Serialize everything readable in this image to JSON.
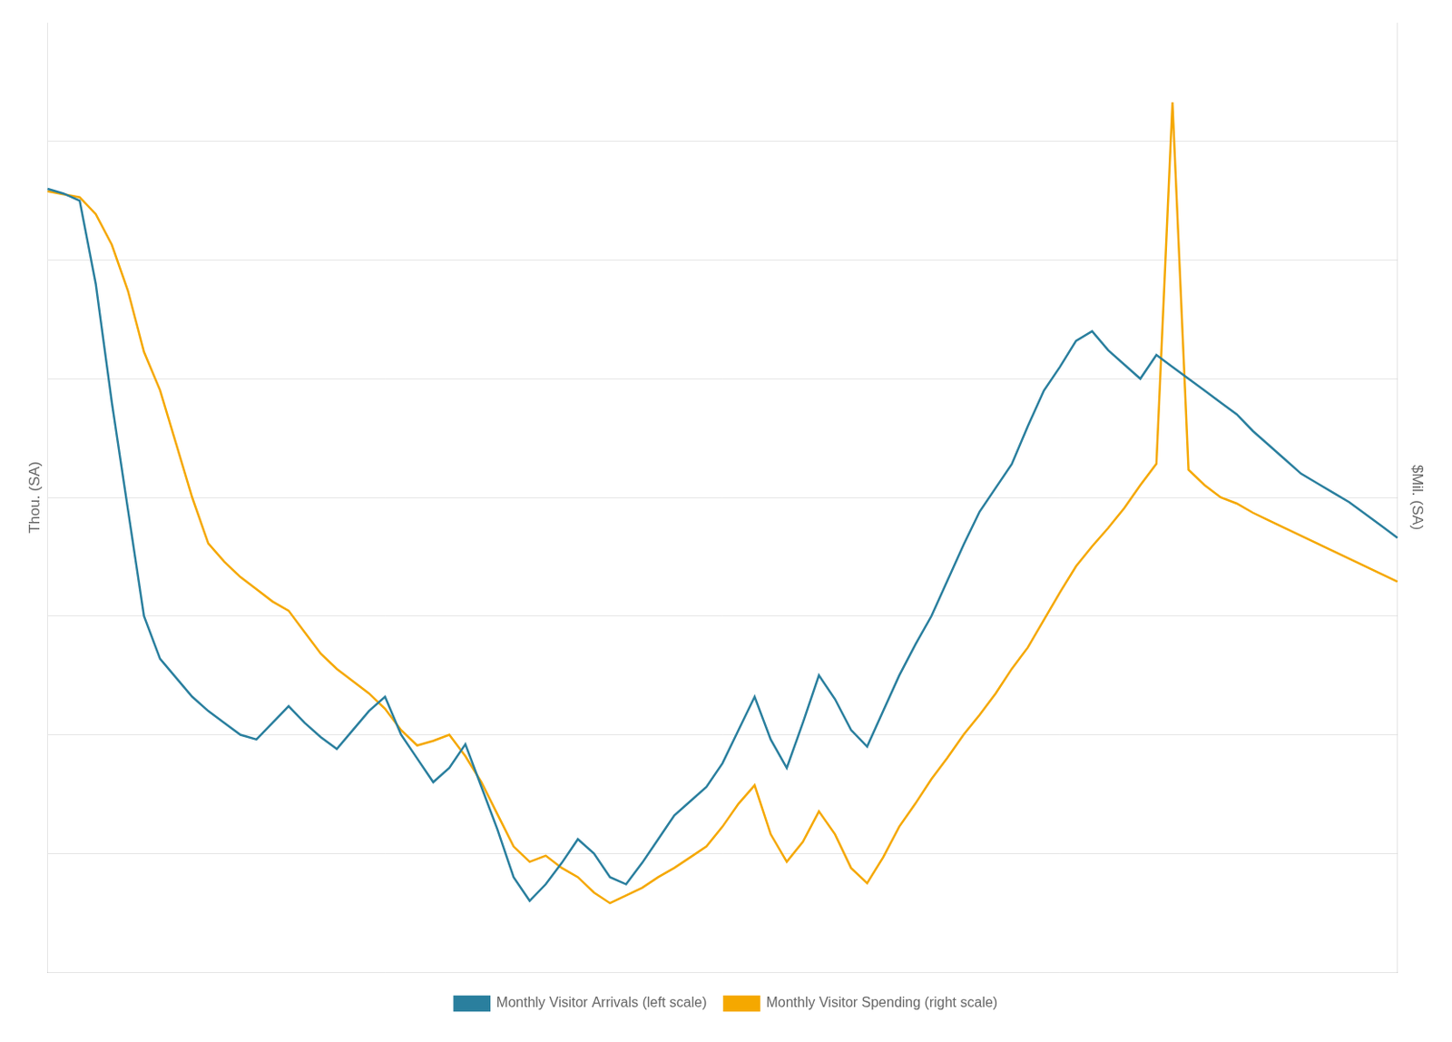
{
  "chart_data": {
    "type": "line",
    "ylabel": "Thou. (SA)",
    "y2label": "$Mil. (SA)",
    "categories": [
      null,
      null,
      null,
      null,
      null,
      null,
      null,
      null,
      null,
      null,
      null,
      null,
      null,
      null,
      null,
      null,
      null,
      null,
      null,
      null,
      null,
      null,
      null,
      null,
      null,
      null,
      null,
      null,
      null,
      null,
      null,
      null,
      null,
      null,
      null,
      null,
      null,
      null,
      null,
      null,
      null,
      null,
      null,
      null,
      null,
      null,
      null,
      null,
      null,
      null,
      null,
      null,
      null,
      null,
      null,
      null,
      null,
      null,
      null,
      null,
      null,
      null,
      null,
      null,
      null,
      null,
      null,
      null,
      null,
      null,
      null,
      null,
      null,
      null,
      null,
      null,
      null,
      null,
      null,
      null,
      null,
      null,
      null,
      null,
      null
    ],
    "series": [
      {
        "name": "Monthly Visitor Arrivals (left scale)",
        "color": "#2a7f9e",
        "values": [
          580,
          578,
          575,
          540,
          490,
          445,
          400,
          382,
          374,
          366,
          360,
          355,
          350,
          348,
          355,
          362,
          355,
          349,
          344,
          352,
          360,
          366,
          350,
          340,
          330,
          336,
          346,
          328,
          310,
          290,
          280,
          287,
          296,
          306,
          300,
          290,
          287,
          296,
          306,
          316,
          322,
          328,
          338,
          352,
          366,
          348,
          336,
          355,
          375,
          365,
          352,
          345,
          360,
          375,
          388,
          400,
          415,
          430,
          444,
          454,
          464,
          480,
          495,
          505,
          516,
          520,
          512,
          506,
          500,
          510,
          505,
          500,
          495,
          490,
          485,
          478,
          472,
          466,
          460,
          456,
          452,
          448,
          443,
          438,
          433
        ]
      },
      {
        "name": "Monthly Visitor Spending (right scale)",
        "color": "#f5a800",
        "axis": "y2",
        "values": [
          1000,
          998,
          996,
          985,
          965,
          935,
          895,
          870,
          835,
          800,
          770,
          758,
          748,
          740,
          732,
          726,
          712,
          698,
          688,
          680,
          672,
          662,
          648,
          638,
          641,
          645,
          631,
          614,
          593,
          572,
          562,
          566,
          558,
          552,
          542,
          535,
          540,
          545,
          552,
          558,
          565,
          572,
          585,
          600,
          612,
          580,
          562,
          575,
          595,
          580,
          558,
          548,
          565,
          585,
          600,
          616,
          630,
          645,
          658,
          672,
          688,
          702,
          720,
          738,
          755,
          768,
          780,
          793,
          808,
          822,
          1058,
          818,
          808,
          800,
          796,
          790,
          785,
          780,
          775,
          770,
          765,
          760,
          755,
          750,
          745
        ]
      }
    ],
    "ylim": [
      250,
      650
    ],
    "yticks": [
      300,
      350,
      400,
      450,
      500,
      550,
      600
    ],
    "y2lim": [
      490,
      1110
    ],
    "y2ticks": [
      600,
      700,
      800,
      900,
      1000
    ],
    "grid": true,
    "legend": "bottom",
    "tick_labels": false
  }
}
